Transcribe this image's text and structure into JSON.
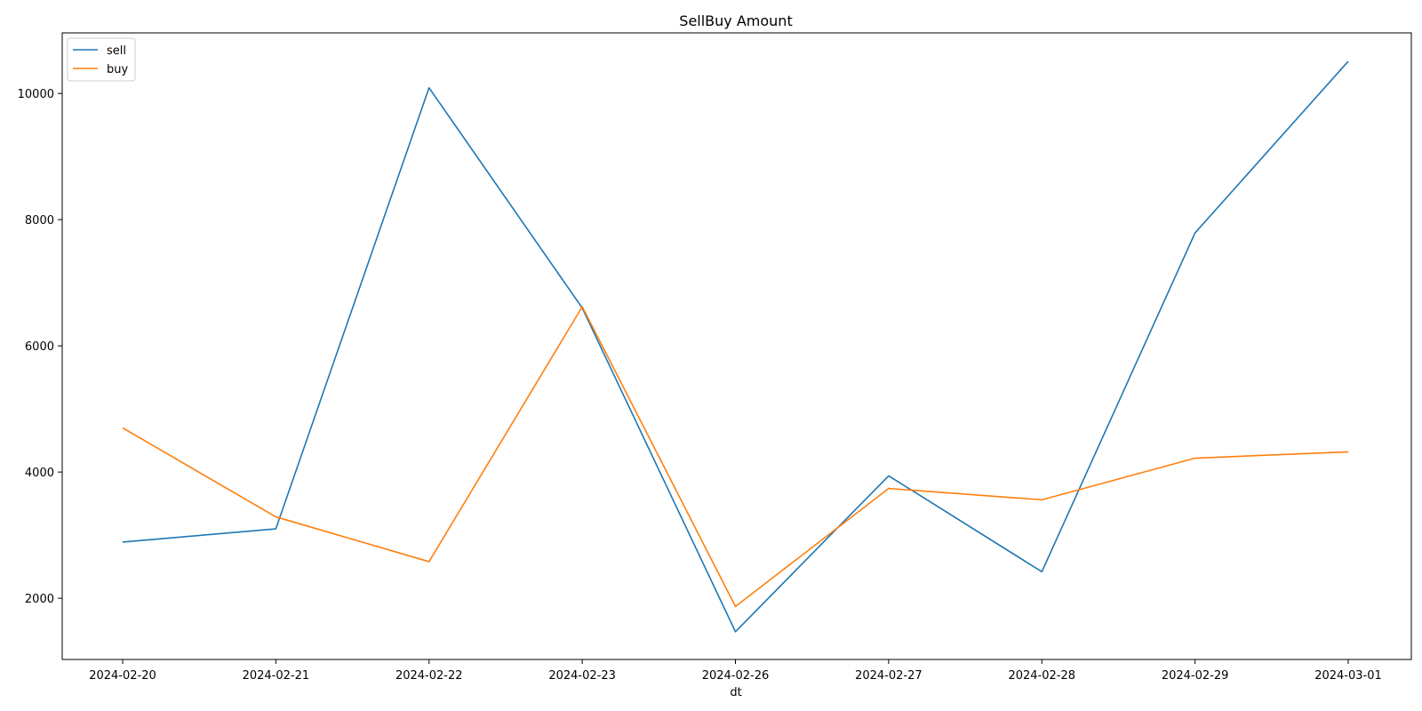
{
  "chart_data": {
    "type": "line",
    "title": "SellBuy Amount",
    "xlabel": "dt",
    "ylabel": "",
    "categories": [
      "2024-02-20",
      "2024-02-21",
      "2024-02-22",
      "2024-02-23",
      "2024-02-26",
      "2024-02-27",
      "2024-02-28",
      "2024-02-29",
      "2024-03-01"
    ],
    "series": [
      {
        "name": "sell",
        "color": "#1f77b4",
        "values": [
          2890,
          3100,
          10090,
          6600,
          1470,
          3940,
          2420,
          7790,
          10510
        ]
      },
      {
        "name": "buy",
        "color": "#ff7f0e",
        "values": [
          4700,
          3290,
          2580,
          6620,
          1870,
          3740,
          3560,
          4220,
          4320
        ]
      }
    ],
    "yticks": [
      2000,
      4000,
      6000,
      8000,
      10000
    ],
    "ylim": [
      1030,
      10960
    ],
    "grid": false,
    "legend": "top-left"
  }
}
